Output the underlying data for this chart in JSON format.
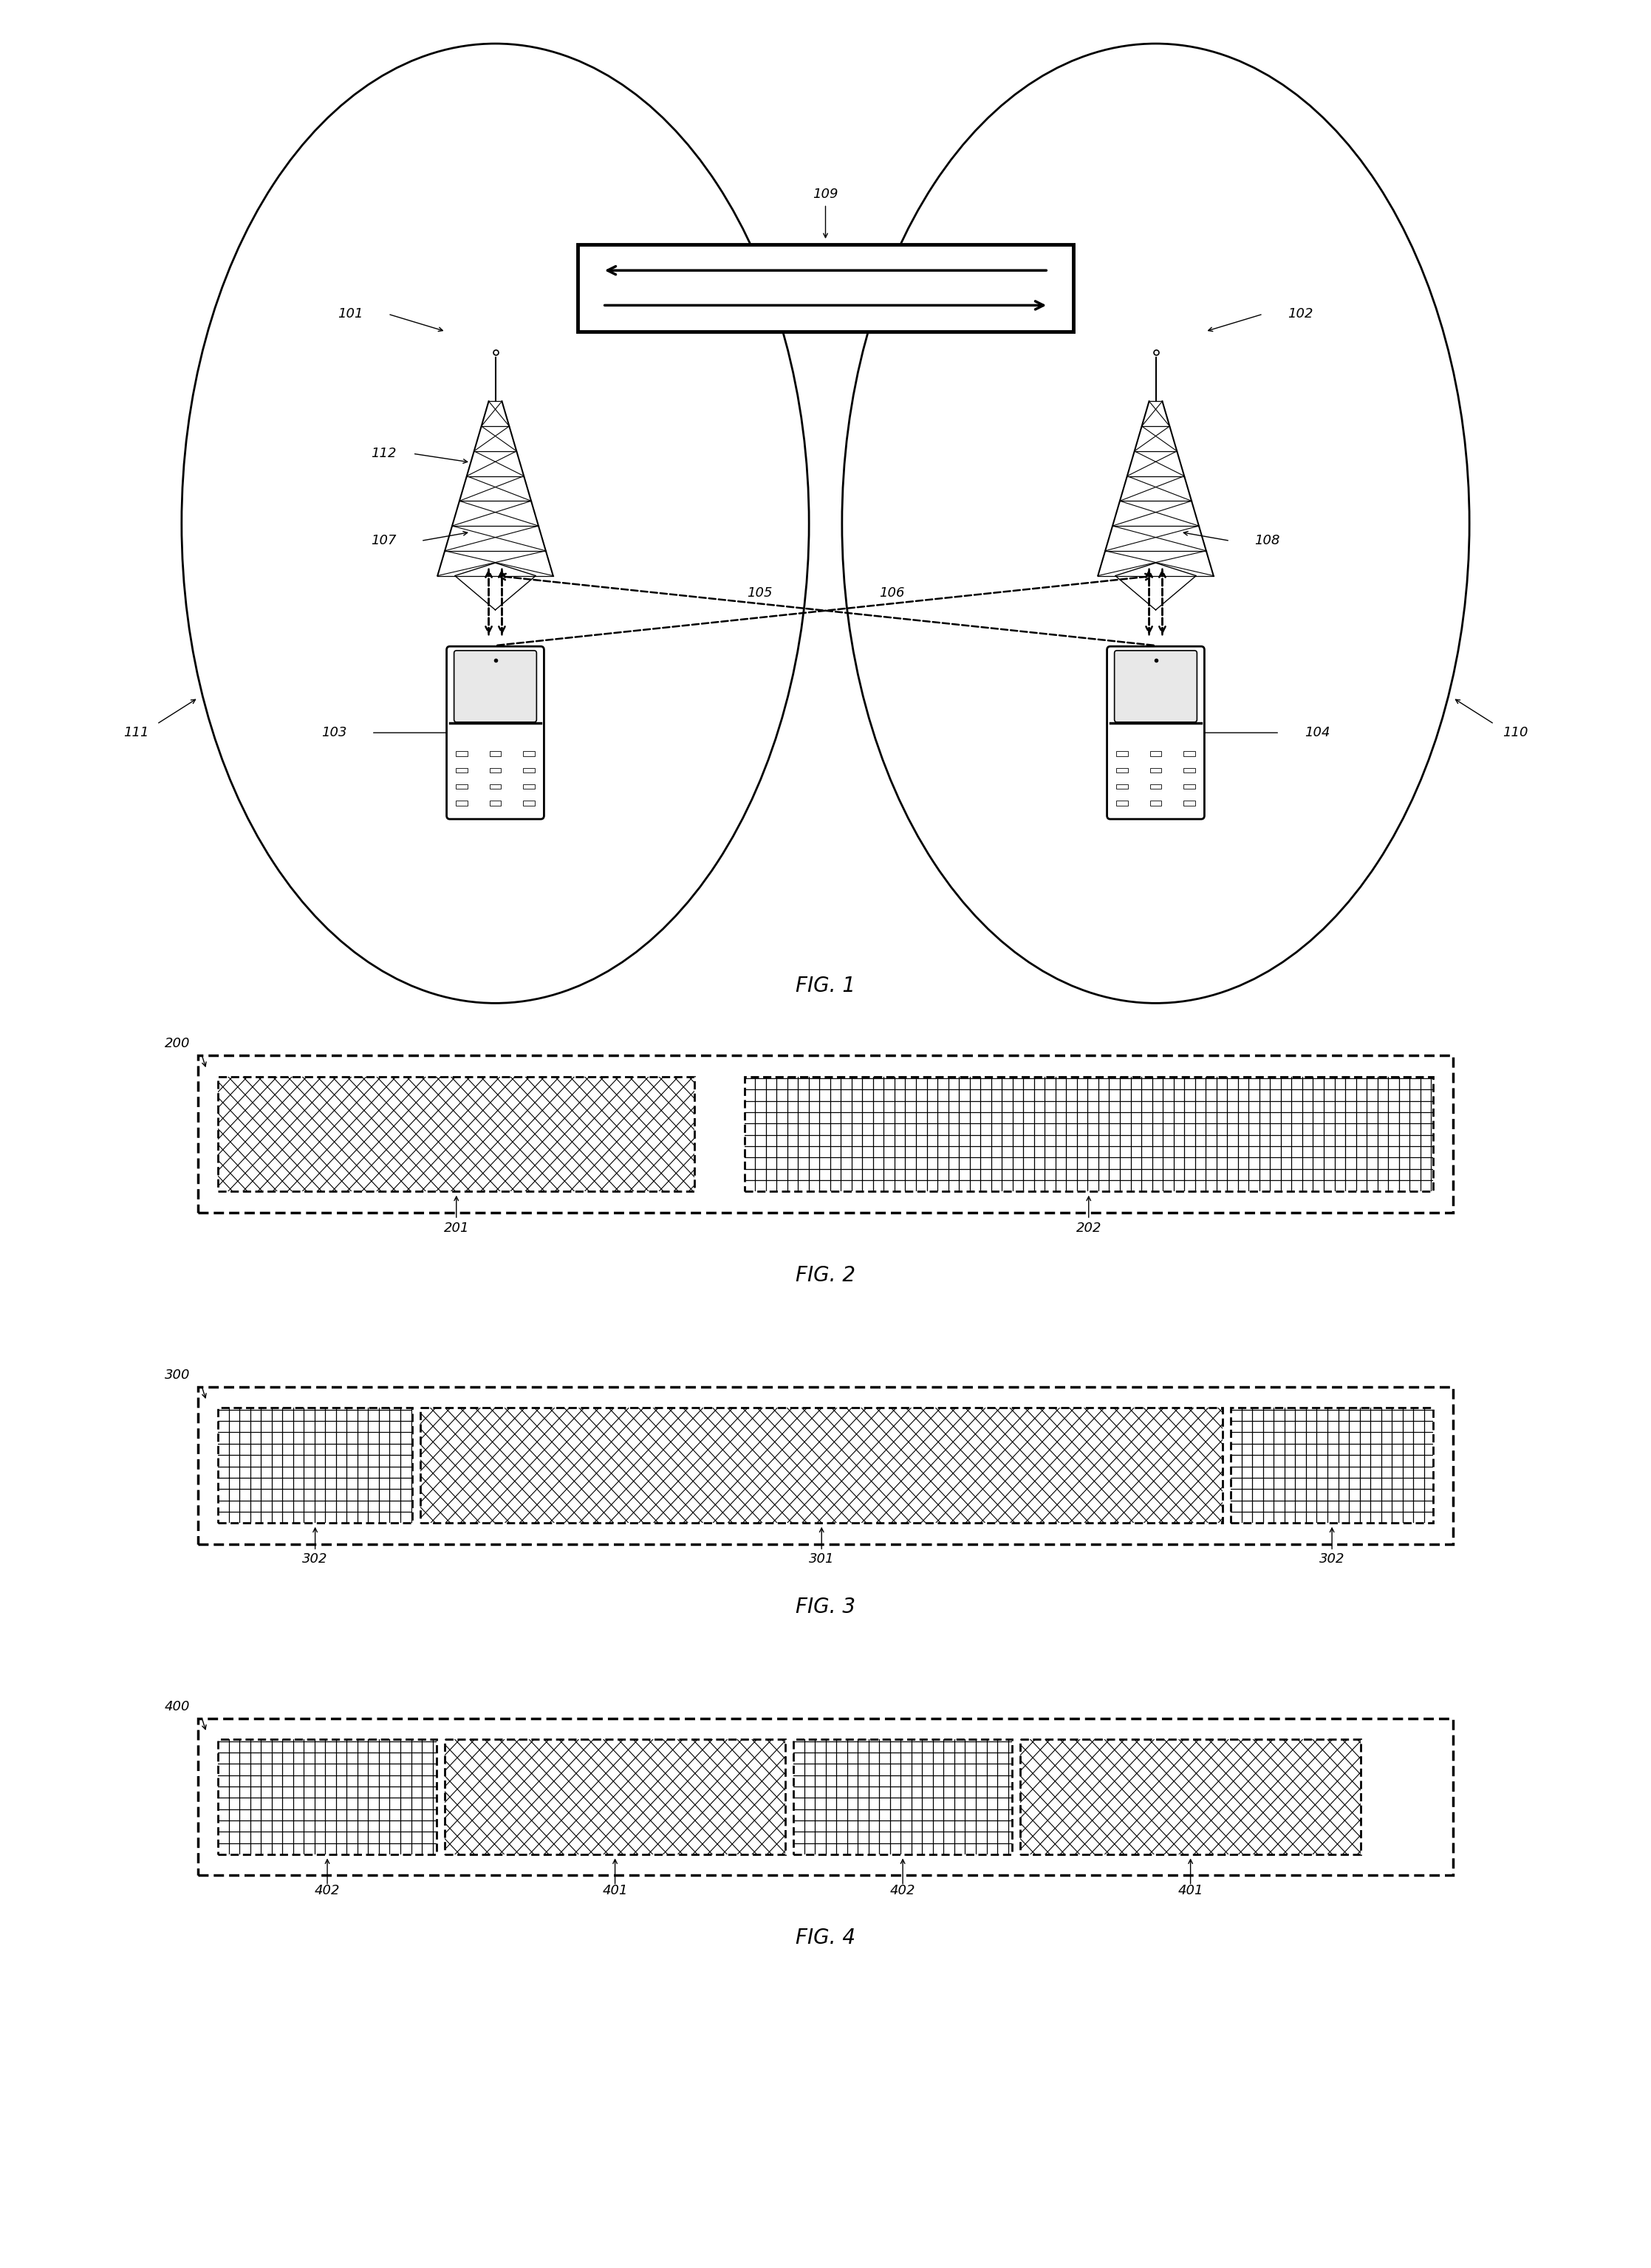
{
  "bg_color": "#ffffff",
  "fig_width": 22.35,
  "fig_height": 30.71,
  "fig1_label": "FIG. 1",
  "fig2_label": "FIG. 2",
  "fig3_label": "FIG. 3",
  "fig4_label": "FIG. 4",
  "label_101": "101",
  "label_102": "102",
  "label_103": "103",
  "label_104": "104",
  "label_105": "105",
  "label_106": "106",
  "label_107": "107",
  "label_108": "108",
  "label_109": "109",
  "label_110": "110",
  "label_111": "111",
  "label_112": "112",
  "label_200": "200",
  "label_201": "201",
  "label_202": "202",
  "label_300": "300",
  "label_301": "301",
  "label_302": "302",
  "label_400": "400",
  "label_401": "401",
  "label_402": "402"
}
